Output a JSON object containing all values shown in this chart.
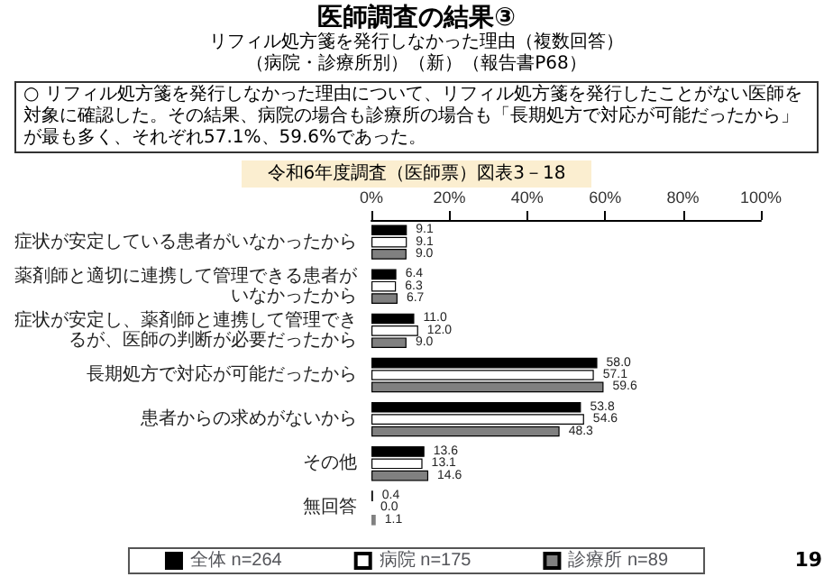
{
  "chart_data": {
    "type": "bar",
    "orientation": "horizontal",
    "title": "医師調査の結果③",
    "subtitle": "リフィル処方箋を発行しなかった理由（複数回答）",
    "annotations": [
      "（病院・診療所別）（新）（報告書P68）",
      "○ リフィル処方箋を発行しなかった理由について、リフィル処方箋を発行したことがない医師を対象に確認した。その結果、病院の場合も診療所の場合も「長期処方で対応が可能だったから」が最も多く、それぞれ57.1%、59.6%であった。",
      "令和6年度調査（医師票）図表3－18",
      "19"
    ],
    "categories": [
      "症状が安定している患者がいなかったから",
      "薬剤師と適切に連携して管理できる患者がいなかったから",
      "症状が安定し、薬剤師と連携して管理できるが、医師の判断が必要だったから",
      "長期処方で対応が可能だったから",
      "患者からの求めがないから",
      "その他",
      "無回答"
    ],
    "series": [
      {
        "name": "全体 n=264",
        "color": "#000000",
        "values": [
          9.1,
          6.4,
          11.0,
          58.0,
          53.8,
          13.6,
          0.4
        ],
        "value_labels": [
          "9.1",
          "6.4",
          "11.0",
          "58.0",
          "53.8",
          "13.6",
          "0.4"
        ]
      },
      {
        "name": "病院 n=175",
        "color": "#ffffff",
        "values": [
          9.1,
          6.3,
          12.0,
          57.1,
          54.6,
          13.1,
          0.0
        ],
        "value_labels": [
          "9.1",
          "6.3",
          "12.0",
          "57.1",
          "54.6",
          "13.1",
          "0.0"
        ]
      },
      {
        "name": "診療所 n=89",
        "color": "#808080",
        "values": [
          9.0,
          6.7,
          9.0,
          59.6,
          48.3,
          14.6,
          1.1
        ],
        "value_labels": [
          "9.0",
          "6.7",
          "9.0",
          "59.6",
          "48.3",
          "14.6",
          "1.1"
        ]
      }
    ],
    "xlim": [
      0,
      100
    ],
    "xticks": [
      {
        "value": 0,
        "label": "0%"
      },
      {
        "value": 20,
        "label": "20%"
      },
      {
        "value": 40,
        "label": "40%"
      },
      {
        "value": 60,
        "label": "60%"
      },
      {
        "value": 80,
        "label": "80%"
      },
      {
        "value": 100,
        "label": "100%"
      }
    ],
    "legend": "bottom",
    "grid": false
  }
}
